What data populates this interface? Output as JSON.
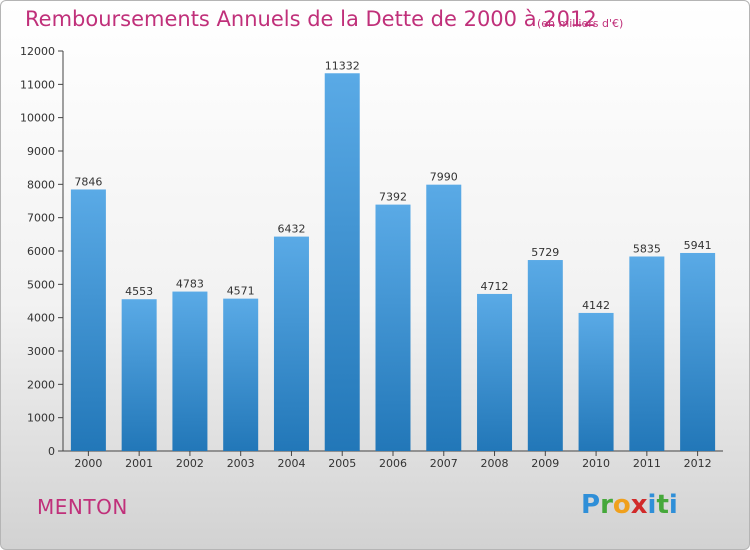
{
  "header": {
    "title": "Remboursements Annuels de la Dette de 2000 à 2012",
    "unit_note": "(en milliers d'€)"
  },
  "footer": {
    "commune": "MENTON",
    "logo": {
      "letters": [
        "P",
        "r",
        "o",
        "x",
        "i",
        "t",
        "i"
      ],
      "colors": [
        "#2f8fd8",
        "#45a83a",
        "#f0a01c",
        "#d12a2a",
        "#2f8fd8",
        "#45a83a",
        "#2f8fd8"
      ]
    }
  },
  "chart_data": {
    "type": "bar",
    "title": "Remboursements Annuels de la Dette de 2000 à 2012",
    "categories": [
      "2000",
      "2001",
      "2002",
      "2003",
      "2004",
      "2005",
      "2006",
      "2007",
      "2008",
      "2009",
      "2010",
      "2011",
      "2012"
    ],
    "values": [
      7846,
      4553,
      4783,
      4571,
      6432,
      11332,
      7392,
      7990,
      4712,
      5729,
      4142,
      5835,
      5941
    ],
    "ylim": [
      0,
      12000
    ],
    "yticks": [
      0,
      1000,
      2000,
      3000,
      4000,
      5000,
      6000,
      7000,
      8000,
      9000,
      10000,
      11000,
      12000
    ],
    "grid": false,
    "bar_color_top": "#5aaae6",
    "bar_color_bottom": "#2277b8"
  }
}
